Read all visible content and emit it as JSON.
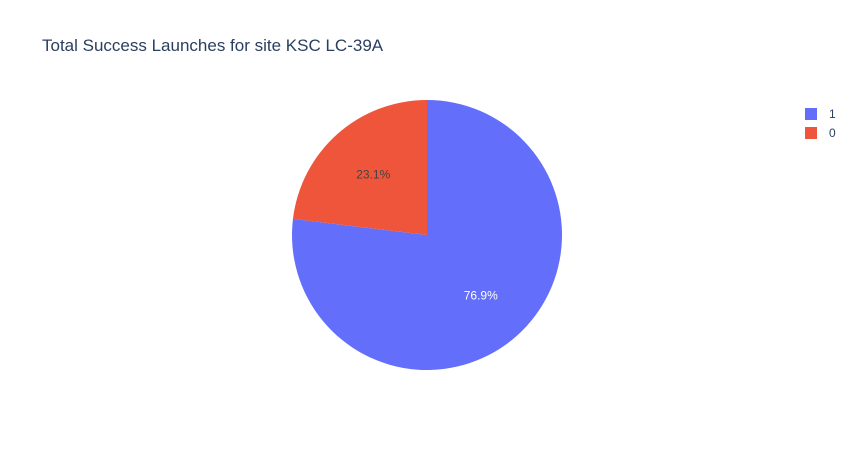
{
  "chart_data": {
    "type": "pie",
    "title": "Total Success Launches for site KSC LC-39A",
    "legend_position": "top-right",
    "slices": [
      {
        "label": "1",
        "percent": 76.9,
        "percent_label": "76.9%",
        "color": "#636efa",
        "text_color": "#ffffff"
      },
      {
        "label": "0",
        "percent": 23.1,
        "percent_label": "23.1%",
        "color": "#ef553b",
        "text_color": "#444444"
      }
    ],
    "direction": "clockwise",
    "start_angle": "12 o'clock"
  }
}
